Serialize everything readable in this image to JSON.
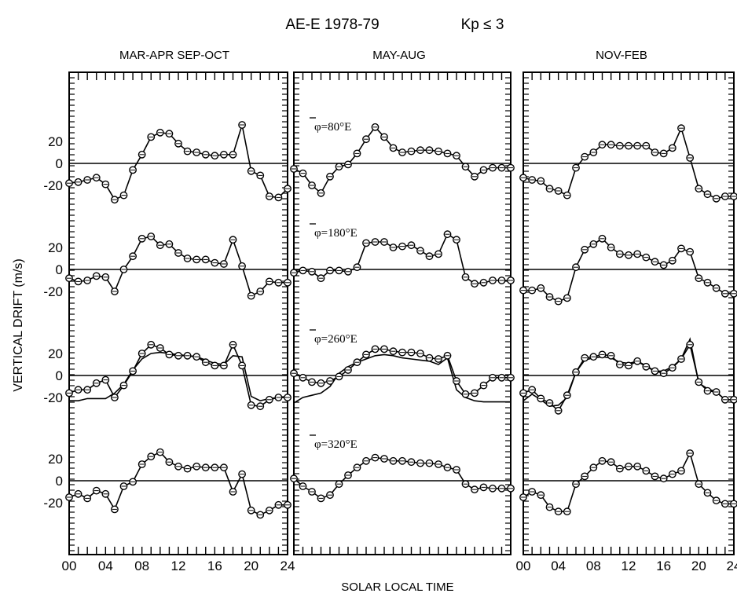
{
  "figure": {
    "title": "AE-E 1978-79",
    "condition": "Kp ≤ 3",
    "ylabel": "VERTICAL DRIFT (m/s)",
    "xlabel": "SOLAR LOCAL TIME"
  },
  "chart_data": {
    "type": "line",
    "xlim": [
      0,
      24
    ],
    "x_ticks": [
      "00",
      "04",
      "08",
      "12",
      "16",
      "20",
      "24"
    ],
    "y_ticks": [
      "20",
      "0",
      "-20"
    ],
    "grid": false,
    "strips": [
      {
        "label": "φ=80°E",
        "ylim": [
          -33,
          33
        ]
      },
      {
        "label": "φ=180°E",
        "ylim": [
          -33,
          33
        ]
      },
      {
        "label": "φ=260°E",
        "ylim": [
          -33,
          33
        ]
      },
      {
        "label": "φ=320°E",
        "ylim": [
          -33,
          33
        ]
      }
    ],
    "panels": [
      {
        "title": "MAR-APR SEP-OCT",
        "x_tick_labels_shown": true,
        "y_tick_labels_shown": true,
        "strips": [
          {
            "x": [
              0,
              1,
              2,
              3,
              4,
              5,
              6,
              7,
              8,
              9,
              10,
              11,
              12,
              13,
              14,
              15,
              16,
              17,
              18,
              19,
              20,
              21,
              22,
              23,
              24
            ],
            "y": [
              -18,
              -17,
              -15,
              -13,
              -19,
              -33,
              -29,
              -6,
              8,
              24,
              28,
              27,
              18,
              11,
              10,
              8,
              7,
              8,
              8,
              35,
              -7,
              -11,
              -30,
              -31,
              -23
            ]
          },
          {
            "x": [
              0,
              1,
              2,
              3,
              4,
              5,
              6,
              7,
              8,
              9,
              10,
              11,
              12,
              13,
              14,
              15,
              16,
              17,
              18,
              19,
              20,
              21,
              22,
              23,
              24
            ],
            "y": [
              -8,
              -11,
              -10,
              -6,
              -7,
              -20,
              0,
              12,
              28,
              30,
              22,
              23,
              15,
              10,
              9,
              9,
              6,
              5,
              27,
              3,
              -24,
              -20,
              -11,
              -12,
              -12
            ]
          },
          {
            "x": [
              0,
              1,
              2,
              3,
              4,
              5,
              6,
              7,
              8,
              9,
              10,
              11,
              12,
              13,
              14,
              15,
              16,
              17,
              18,
              19,
              20,
              21,
              22,
              23,
              24
            ],
            "y": [
              -16,
              -13,
              -13,
              -7,
              -4,
              -20,
              -9,
              4,
              20,
              28,
              25,
              19,
              18,
              18,
              17,
              12,
              9,
              9,
              28,
              9,
              -27,
              -28,
              -22,
              -20,
              -20
            ],
            "model_x": [
              0,
              1,
              2,
              3,
              4,
              5,
              6,
              7,
              8,
              9,
              10,
              11,
              12,
              13,
              14,
              15,
              16,
              17,
              18,
              19,
              20,
              21,
              22,
              23,
              24
            ],
            "model_y": [
              -23,
              -23,
              -21,
              -21,
              -21,
              -16,
              -8,
              5,
              15,
              20,
              21,
              20,
              19,
              18,
              17,
              14,
              11,
              10,
              18,
              17,
              -19,
              -23,
              -21,
              -20,
              -20
            ]
          },
          {
            "x": [
              0,
              1,
              2,
              3,
              4,
              5,
              6,
              7,
              8,
              9,
              10,
              11,
              12,
              13,
              14,
              15,
              16,
              17,
              18,
              19,
              20,
              21,
              22,
              23,
              24
            ],
            "y": [
              -15,
              -12,
              -16,
              -9,
              -12,
              -26,
              -5,
              -1,
              15,
              22,
              26,
              17,
              13,
              11,
              13,
              12,
              12,
              12,
              -10,
              6,
              -27,
              -31,
              -27,
              -22,
              -22
            ]
          }
        ]
      },
      {
        "title": "MAY-AUG",
        "x_tick_labels_shown": false,
        "y_tick_labels_shown": false,
        "strips": [
          {
            "x": [
              0,
              1,
              2,
              3,
              4,
              5,
              6,
              7,
              8,
              9,
              10,
              11,
              12,
              13,
              14,
              15,
              16,
              17,
              18,
              19,
              20,
              21,
              22,
              23,
              24
            ],
            "y": [
              -5,
              -9,
              -20,
              -27,
              -12,
              -3,
              -1,
              9,
              22,
              33,
              24,
              14,
              10,
              11,
              12,
              12,
              11,
              9,
              7,
              -3,
              -12,
              -6,
              -4,
              -4,
              -4
            ]
          },
          {
            "x": [
              0,
              1,
              2,
              3,
              4,
              5,
              6,
              7,
              8,
              9,
              10,
              11,
              12,
              13,
              14,
              15,
              16,
              17,
              18,
              19,
              20,
              21,
              22,
              23,
              24
            ],
            "y": [
              -3,
              -1,
              -2,
              -8,
              -1,
              -1,
              -2,
              2,
              24,
              25,
              25,
              20,
              21,
              22,
              17,
              12,
              14,
              32,
              27,
              -7,
              -13,
              -12,
              -10,
              -10,
              -10
            ]
          },
          {
            "x": [
              0,
              1,
              2,
              3,
              4,
              5,
              6,
              7,
              8,
              9,
              10,
              11,
              12,
              13,
              14,
              15,
              16,
              17,
              18,
              19,
              20,
              21,
              22,
              23,
              24
            ],
            "y": [
              2,
              -2,
              -6,
              -7,
              -5,
              -1,
              5,
              12,
              19,
              24,
              24,
              22,
              21,
              21,
              20,
              16,
              15,
              18,
              -5,
              -17,
              -16,
              -9,
              -2,
              -2,
              -2
            ],
            "model_x": [
              0,
              1,
              2,
              3,
              4,
              5,
              6,
              7,
              8,
              9,
              10,
              11,
              12,
              13,
              14,
              15,
              16,
              17,
              18,
              19,
              20,
              21,
              22,
              23,
              24
            ],
            "model_y": [
              -25,
              -20,
              -18,
              -16,
              -10,
              2,
              8,
              12,
              15,
              18,
              19,
              18,
              16,
              15,
              14,
              13,
              10,
              16,
              -13,
              -20,
              -23,
              -24,
              -24,
              -24,
              -24
            ]
          },
          {
            "x": [
              0,
              1,
              2,
              3,
              4,
              5,
              6,
              7,
              8,
              9,
              10,
              11,
              12,
              13,
              14,
              15,
              16,
              17,
              18,
              19,
              20,
              21,
              22,
              23,
              24
            ],
            "y": [
              2,
              -5,
              -10,
              -16,
              -13,
              -3,
              5,
              12,
              18,
              21,
              20,
              18,
              18,
              17,
              16,
              16,
              15,
              12,
              10,
              -3,
              -8,
              -6,
              -7,
              -7,
              -7
            ]
          }
        ]
      },
      {
        "title": "NOV-FEB",
        "x_tick_labels_shown": true,
        "y_tick_labels_shown": false,
        "strips": [
          {
            "x": [
              0,
              1,
              2,
              3,
              4,
              5,
              6,
              7,
              8,
              9,
              10,
              11,
              12,
              13,
              14,
              15,
              16,
              17,
              18,
              19,
              20,
              21,
              22,
              23,
              24
            ],
            "y": [
              -13,
              -15,
              -16,
              -23,
              -25,
              -29,
              -4,
              6,
              10,
              17,
              17,
              16,
              16,
              16,
              16,
              10,
              9,
              14,
              32,
              5,
              -23,
              -28,
              -32,
              -30,
              -30
            ]
          },
          {
            "x": [
              0,
              1,
              2,
              3,
              4,
              5,
              6,
              7,
              8,
              9,
              10,
              11,
              12,
              13,
              14,
              15,
              16,
              17,
              18,
              19,
              20,
              21,
              22,
              23,
              24
            ],
            "y": [
              -19,
              -19,
              -17,
              -25,
              -29,
              -26,
              2,
              18,
              23,
              28,
              20,
              14,
              13,
              14,
              11,
              7,
              4,
              8,
              19,
              16,
              -8,
              -12,
              -17,
              -22,
              -22
            ]
          },
          {
            "x": [
              0,
              1,
              2,
              3,
              4,
              5,
              6,
              7,
              8,
              9,
              10,
              11,
              12,
              13,
              14,
              15,
              16,
              17,
              18,
              19,
              20,
              21,
              22,
              23,
              24
            ],
            "y": [
              -16,
              -13,
              -21,
              -25,
              -32,
              -18,
              3,
              16,
              17,
              19,
              18,
              10,
              9,
              13,
              8,
              4,
              2,
              7,
              15,
              28,
              -6,
              -14,
              -15,
              -22,
              -22
            ],
            "model_x": [
              0,
              1,
              2,
              3,
              4,
              5,
              6,
              7,
              8,
              9,
              10,
              11,
              12,
              13,
              14,
              15,
              16,
              17,
              18,
              19,
              20,
              21,
              22,
              23,
              24
            ],
            "model_y": [
              -23,
              -17,
              -22,
              -28,
              -27,
              -20,
              3,
              14,
              16,
              17,
              16,
              12,
              11,
              13,
              9,
              4,
              4,
              8,
              15,
              33,
              -7,
              -12,
              -15,
              -22,
              -22
            ]
          },
          {
            "x": [
              0,
              1,
              2,
              3,
              4,
              5,
              6,
              7,
              8,
              9,
              10,
              11,
              12,
              13,
              14,
              15,
              16,
              17,
              18,
              19,
              20,
              21,
              22,
              23,
              24
            ],
            "y": [
              -15,
              -10,
              -13,
              -24,
              -28,
              -28,
              -3,
              4,
              12,
              18,
              17,
              11,
              13,
              13,
              9,
              4,
              2,
              6,
              9,
              25,
              -3,
              -11,
              -18,
              -21,
              -21
            ]
          }
        ]
      }
    ]
  }
}
